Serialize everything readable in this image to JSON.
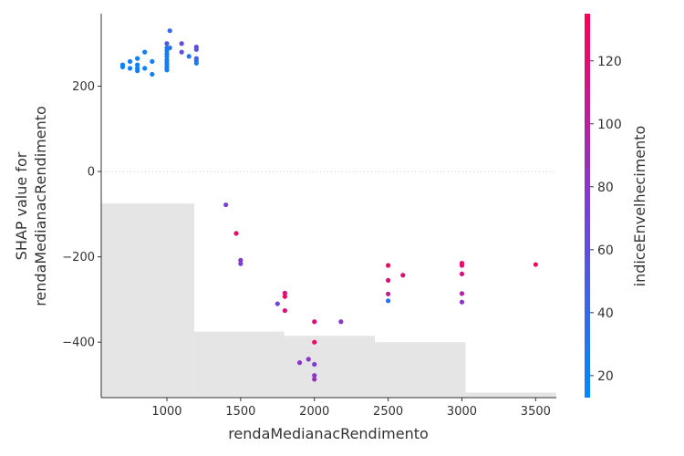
{
  "chart_data": {
    "type": "scatter",
    "title": "",
    "xlabel": "rendaMedianacRendimento",
    "ylabel_lines": [
      "SHAP value for",
      "rendaMedianacRendimento"
    ],
    "xlim": [
      555,
      3640
    ],
    "ylim": [
      -530,
      370
    ],
    "x_ticks": [
      1000,
      1500,
      2000,
      2500,
      3000,
      3500
    ],
    "y_ticks": [
      -400,
      -200,
      0,
      200
    ],
    "colorbar": {
      "label": "indiceEnvelhecimento",
      "range": [
        13,
        135
      ],
      "ticks": [
        20,
        40,
        60,
        80,
        100,
        120
      ],
      "colors": [
        "#008afb",
        "#7b3ed5",
        "#ff0052"
      ]
    },
    "histogram_fill": "#e5e5e5",
    "histogram_bins": [
      {
        "x0": 555,
        "x1": 1185,
        "y": -75
      },
      {
        "x0": 1185,
        "x1": 1795,
        "y": -375
      },
      {
        "x0": 1795,
        "x1": 2410,
        "y": -385
      },
      {
        "x0": 2410,
        "x1": 3025,
        "y": -400
      },
      {
        "x0": 3025,
        "x1": 3640,
        "y": -518
      }
    ],
    "points": [
      {
        "x": 700,
        "y": 250,
        "c": 22
      },
      {
        "x": 700,
        "y": 245,
        "c": 22
      },
      {
        "x": 750,
        "y": 258,
        "c": 23
      },
      {
        "x": 750,
        "y": 242,
        "c": 21
      },
      {
        "x": 800,
        "y": 265,
        "c": 23
      },
      {
        "x": 800,
        "y": 250,
        "c": 22
      },
      {
        "x": 800,
        "y": 242,
        "c": 22
      },
      {
        "x": 800,
        "y": 236,
        "c": 21
      },
      {
        "x": 850,
        "y": 280,
        "c": 24
      },
      {
        "x": 850,
        "y": 242,
        "c": 22
      },
      {
        "x": 900,
        "y": 258,
        "c": 23
      },
      {
        "x": 900,
        "y": 228,
        "c": 21
      },
      {
        "x": 1000,
        "y": 300,
        "c": 50
      },
      {
        "x": 1000,
        "y": 290,
        "c": 30
      },
      {
        "x": 1000,
        "y": 283,
        "c": 25
      },
      {
        "x": 1000,
        "y": 276,
        "c": 24
      },
      {
        "x": 1000,
        "y": 270,
        "c": 24
      },
      {
        "x": 1000,
        "y": 262,
        "c": 24
      },
      {
        "x": 1000,
        "y": 256,
        "c": 22
      },
      {
        "x": 1000,
        "y": 250,
        "c": 22
      },
      {
        "x": 1000,
        "y": 244,
        "c": 22
      },
      {
        "x": 1000,
        "y": 238,
        "c": 21
      },
      {
        "x": 1020,
        "y": 330,
        "c": 40
      },
      {
        "x": 1020,
        "y": 290,
        "c": 30
      },
      {
        "x": 1100,
        "y": 300,
        "c": 65
      },
      {
        "x": 1100,
        "y": 280,
        "c": 60
      },
      {
        "x": 1150,
        "y": 270,
        "c": 30
      },
      {
        "x": 1200,
        "y": 292,
        "c": 65
      },
      {
        "x": 1200,
        "y": 286,
        "c": 55
      },
      {
        "x": 1200,
        "y": 265,
        "c": 45
      },
      {
        "x": 1200,
        "y": 260,
        "c": 38
      },
      {
        "x": 1200,
        "y": 254,
        "c": 25
      },
      {
        "x": 1400,
        "y": -78,
        "c": 72
      },
      {
        "x": 1470,
        "y": -145,
        "c": 122
      },
      {
        "x": 1500,
        "y": -208,
        "c": 78
      },
      {
        "x": 1500,
        "y": -216,
        "c": 75
      },
      {
        "x": 1750,
        "y": -310,
        "c": 68
      },
      {
        "x": 1800,
        "y": -285,
        "c": 115
      },
      {
        "x": 1800,
        "y": -293,
        "c": 125
      },
      {
        "x": 1800,
        "y": -326,
        "c": 115
      },
      {
        "x": 1900,
        "y": -448,
        "c": 80
      },
      {
        "x": 1960,
        "y": -440,
        "c": 80
      },
      {
        "x": 2000,
        "y": -352,
        "c": 120
      },
      {
        "x": 2000,
        "y": -400,
        "c": 125
      },
      {
        "x": 2000,
        "y": -452,
        "c": 75
      },
      {
        "x": 2000,
        "y": -478,
        "c": 80
      },
      {
        "x": 2000,
        "y": -487,
        "c": 85
      },
      {
        "x": 2180,
        "y": -352,
        "c": 80
      },
      {
        "x": 2500,
        "y": -220,
        "c": 128
      },
      {
        "x": 2500,
        "y": -255,
        "c": 115
      },
      {
        "x": 2500,
        "y": -287,
        "c": 108
      },
      {
        "x": 2500,
        "y": -303,
        "c": 30
      },
      {
        "x": 2600,
        "y": -243,
        "c": 118
      },
      {
        "x": 3000,
        "y": -215,
        "c": 125
      },
      {
        "x": 3000,
        "y": -220,
        "c": 120
      },
      {
        "x": 3000,
        "y": -240,
        "c": 115
      },
      {
        "x": 3000,
        "y": -286,
        "c": 100
      },
      {
        "x": 3000,
        "y": -306,
        "c": 80
      },
      {
        "x": 3500,
        "y": -218,
        "c": 128
      }
    ]
  }
}
